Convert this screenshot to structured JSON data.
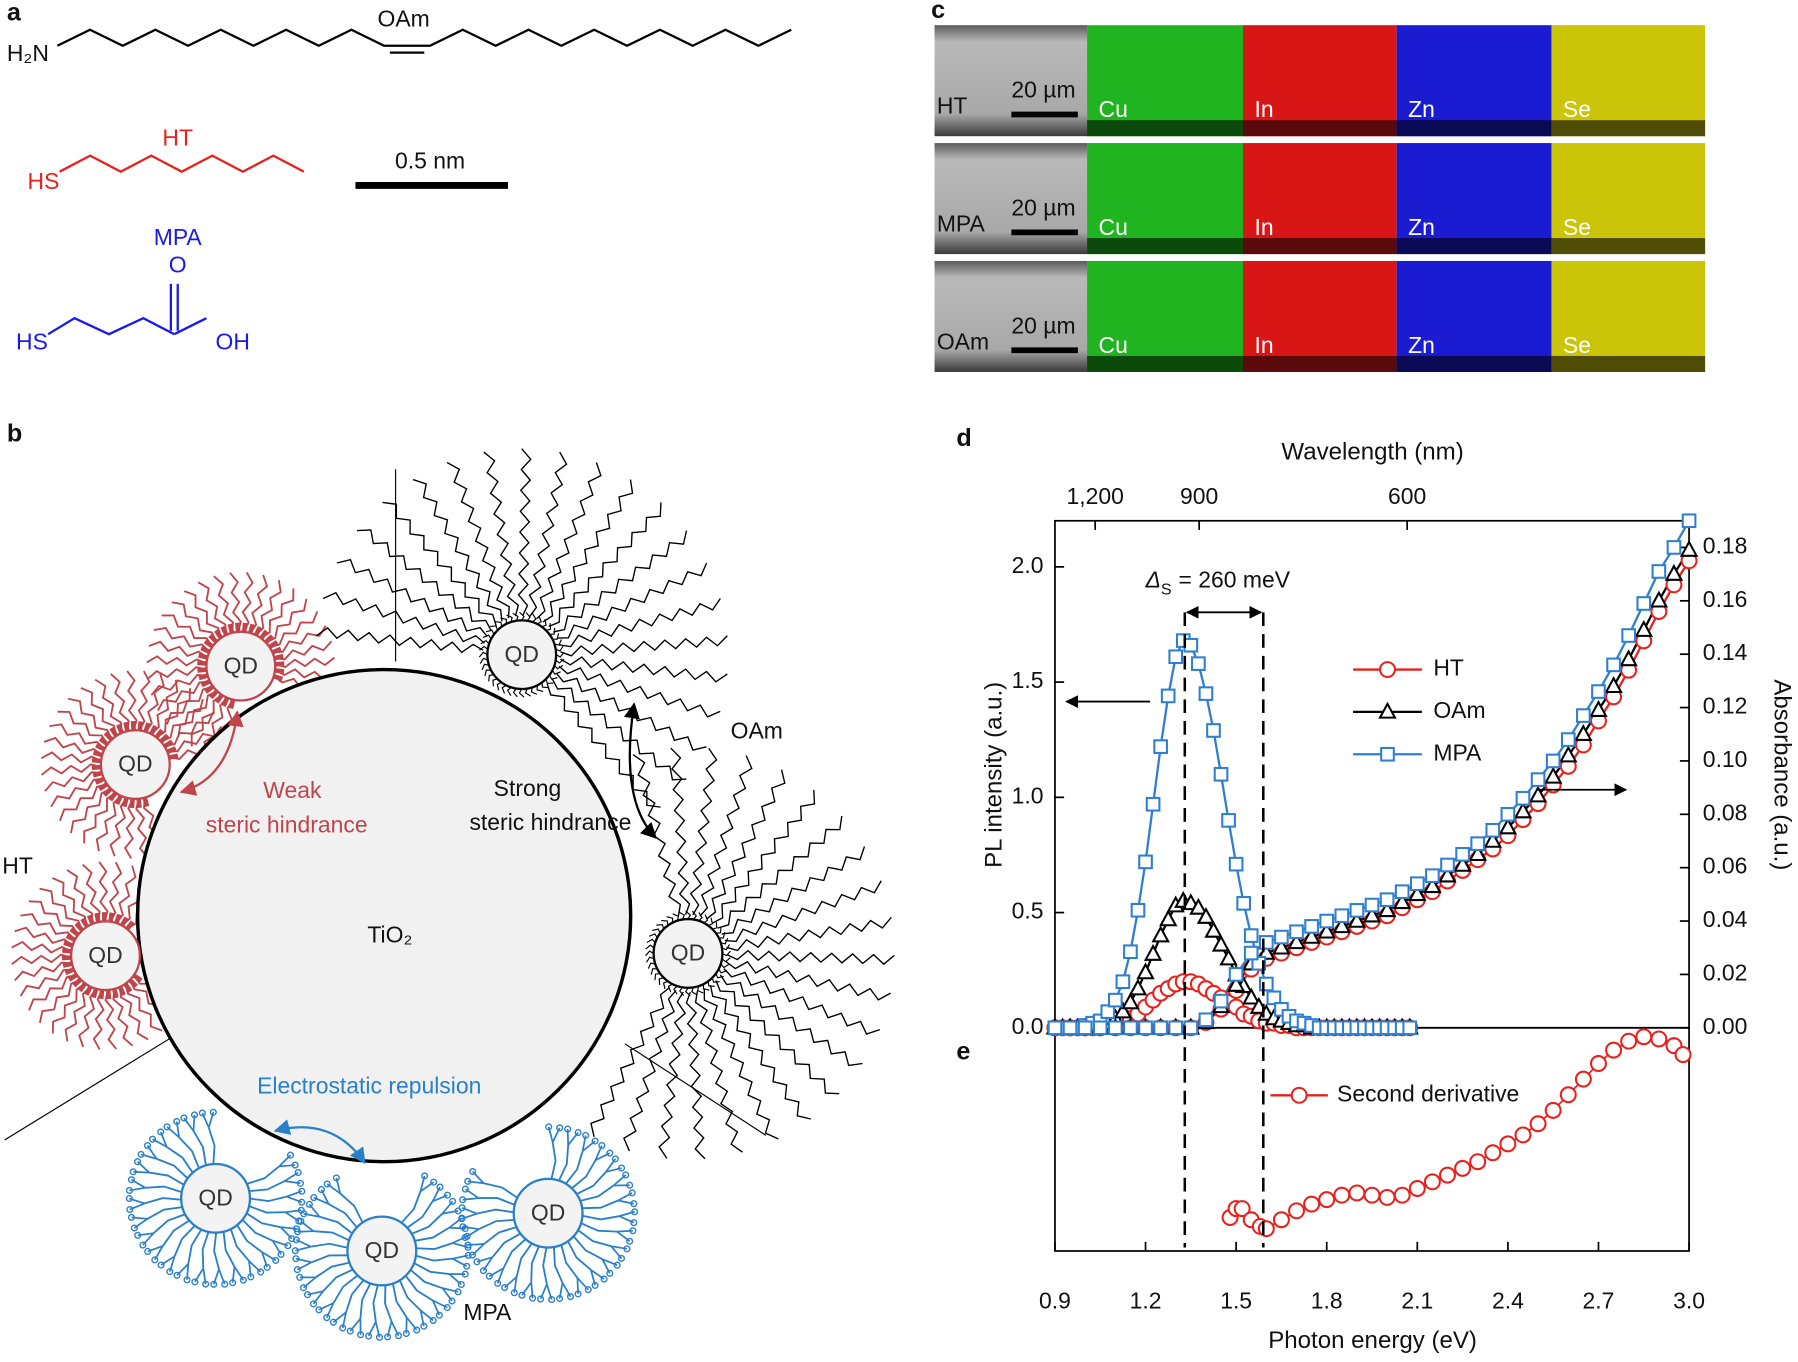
{
  "panel_labels": [
    "a",
    "b",
    "c",
    "d",
    "e"
  ],
  "panel_a": {
    "oam": {
      "label": "OAm",
      "amine": "H₂N"
    },
    "ht": {
      "label": "HT",
      "thiol": "HS"
    },
    "mpa": {
      "label": "MPA",
      "thiol": "HS",
      "carbonyl": "O",
      "hydroxyl": "OH"
    },
    "scale_bar": "0.5 nm"
  },
  "panel_b": {
    "support": "TiO₂",
    "qd_label": "QD",
    "weak": [
      "Weak",
      "steric hindrance"
    ],
    "strong": [
      "Strong",
      "steric hindrance"
    ],
    "ht_label": "HT",
    "oam_label": "OAm",
    "repulsion": "Electrostatic repulsion",
    "mpa_label": "MPA"
  },
  "panel_c": {
    "rows": [
      {
        "sample": "HT",
        "scale_bar": "20 µm",
        "elements": [
          "Cu",
          "In",
          "Zn",
          "Se"
        ]
      },
      {
        "sample": "MPA",
        "scale_bar": "20 µm",
        "elements": [
          "Cu",
          "In",
          "Zn",
          "Se"
        ]
      },
      {
        "sample": "OAm",
        "scale_bar": "20 µm",
        "elements": [
          "Cu",
          "In",
          "Zn",
          "Se"
        ]
      }
    ]
  },
  "chart_data": [
    {
      "type": "line",
      "x2label": "Wavelength (nm)",
      "ylabel": "PL intensity (a.u.)",
      "y2label": "Absorbance (a.u.)",
      "annotation": {
        "symbol": "Δ",
        "subscript": "S",
        "text": "= 260 meV"
      },
      "vlines": [
        1.33,
        1.59
      ],
      "xlim": [
        0.9,
        3.0
      ],
      "x2ticks": [
        {
          "value": 1200,
          "label": "1,200"
        },
        900,
        600
      ],
      "ylim": [
        0,
        2.2
      ],
      "yticks": [
        {
          "value": 0,
          "label": "0.0"
        },
        0.5,
        {
          "value": 1,
          "label": "1.0"
        },
        1.5,
        {
          "value": 2,
          "label": "2.0"
        }
      ],
      "y2lim": [
        0,
        0.19
      ],
      "y2ticks": [
        {
          "value": 0,
          "label": "0.00"
        },
        0.02,
        0.04,
        0.06,
        0.08,
        {
          "value": 0.1,
          "label": "0.10"
        },
        0.12,
        0.14,
        0.16,
        0.18
      ],
      "x": [
        0.9,
        0.925,
        0.95,
        0.975,
        1.0,
        1.025,
        1.05,
        1.075,
        1.1,
        1.125,
        1.15,
        1.175,
        1.2,
        1.225,
        1.25,
        1.275,
        1.3,
        1.325,
        1.35,
        1.375,
        1.4,
        1.425,
        1.45,
        1.475,
        1.5,
        1.525,
        1.55,
        1.575,
        1.6,
        1.625,
        1.65,
        1.675,
        1.7,
        1.725,
        1.75,
        1.775,
        1.8,
        1.825,
        1.85,
        1.875,
        1.9,
        1.925,
        1.95,
        1.975,
        2.0,
        2.025,
        2.05,
        2.075
      ],
      "absorbance_x": [
        0.9,
        0.95,
        1.0,
        1.05,
        1.1,
        1.15,
        1.2,
        1.25,
        1.3,
        1.35,
        1.4,
        1.45,
        1.5,
        1.55,
        1.6,
        1.65,
        1.7,
        1.75,
        1.8,
        1.85,
        1.9,
        1.95,
        2.0,
        2.05,
        2.1,
        2.15,
        2.2,
        2.25,
        2.3,
        2.35,
        2.4,
        2.45,
        2.5,
        2.55,
        2.6,
        2.65,
        2.7,
        2.75,
        2.8,
        2.85,
        2.9,
        2.95,
        3.0
      ],
      "series": [
        {
          "name": "HT",
          "color": "#e8211d",
          "marker": "circle",
          "values": [
            0,
            0,
            0,
            0,
            0,
            0,
            0,
            0.01,
            0.01,
            0.02,
            0.04,
            0.06,
            0.09,
            0.12,
            0.15,
            0.17,
            0.19,
            0.2,
            0.2,
            0.19,
            0.17,
            0.15,
            0.13,
            0.11,
            0.09,
            0.06,
            0.05,
            0.03,
            0.02,
            0.02,
            0.01,
            0.01,
            0,
            0,
            0,
            0,
            0,
            0,
            0,
            0,
            0,
            0,
            0,
            0,
            0,
            0,
            0,
            0
          ],
          "absorbance_values": [
            0,
            0,
            0,
            0,
            0,
            0,
            0,
            0,
            0,
            0,
            0.002,
            0.007,
            0.014,
            0.022,
            0.026,
            0.028,
            0.03,
            0.032,
            0.034,
            0.036,
            0.038,
            0.04,
            0.042,
            0.045,
            0.048,
            0.051,
            0.055,
            0.059,
            0.063,
            0.067,
            0.072,
            0.078,
            0.084,
            0.091,
            0.098,
            0.106,
            0.115,
            0.124,
            0.134,
            0.145,
            0.156,
            0.166,
            0.175
          ]
        },
        {
          "name": "OAm",
          "color": "#000000",
          "marker": "triangle",
          "values": [
            0,
            0,
            0,
            0,
            0,
            0.01,
            0.01,
            0.02,
            0.04,
            0.07,
            0.11,
            0.17,
            0.24,
            0.32,
            0.4,
            0.47,
            0.53,
            0.55,
            0.54,
            0.52,
            0.48,
            0.42,
            0.36,
            0.3,
            0.23,
            0.18,
            0.13,
            0.09,
            0.06,
            0.04,
            0.03,
            0.02,
            0.01,
            0.01,
            0,
            0,
            0,
            0,
            0,
            0,
            0,
            0,
            0,
            0,
            0,
            0,
            0,
            0
          ],
          "absorbance_values": [
            0,
            0,
            0,
            0,
            0,
            0,
            0,
            0,
            0,
            0,
            0.002,
            0.008,
            0.016,
            0.024,
            0.028,
            0.03,
            0.032,
            0.034,
            0.036,
            0.038,
            0.04,
            0.042,
            0.044,
            0.047,
            0.05,
            0.053,
            0.057,
            0.061,
            0.065,
            0.07,
            0.075,
            0.081,
            0.087,
            0.094,
            0.102,
            0.11,
            0.119,
            0.128,
            0.138,
            0.149,
            0.16,
            0.17,
            0.179
          ]
        },
        {
          "name": "MPA",
          "color": "#2f7fd1",
          "marker": "square",
          "values": [
            0,
            0,
            0,
            0,
            0.01,
            0.02,
            0.03,
            0.07,
            0.12,
            0.2,
            0.33,
            0.51,
            0.72,
            0.97,
            1.22,
            1.44,
            1.61,
            1.68,
            1.66,
            1.58,
            1.45,
            1.29,
            1.1,
            0.9,
            0.71,
            0.54,
            0.4,
            0.28,
            0.19,
            0.13,
            0.08,
            0.05,
            0.03,
            0.02,
            0.01,
            0,
            0,
            0,
            0,
            0,
            0,
            0,
            0,
            0,
            0,
            0,
            0,
            0
          ],
          "absorbance_values": [
            0,
            0,
            0,
            0,
            0,
            0,
            0,
            0,
            0,
            0,
            0.003,
            0.01,
            0.02,
            0.028,
            0.032,
            0.034,
            0.036,
            0.038,
            0.04,
            0.042,
            0.044,
            0.046,
            0.048,
            0.051,
            0.054,
            0.057,
            0.061,
            0.065,
            0.069,
            0.074,
            0.08,
            0.086,
            0.093,
            0.1,
            0.108,
            0.117,
            0.126,
            0.136,
            0.147,
            0.159,
            0.171,
            0.18,
            0.19
          ]
        }
      ]
    },
    {
      "type": "line",
      "xlabel": "Photon energy (eV)",
      "xlim": [
        0.9,
        3.0
      ],
      "xticks": [
        0.9,
        1.2,
        1.5,
        1.8,
        2.1,
        2.4,
        2.7,
        {
          "value": 3,
          "label": "3.0"
        }
      ],
      "ylim": [
        0,
        1
      ],
      "series": [
        {
          "name": "Second derivative",
          "color": "#e8211d",
          "marker": "circle",
          "x": [
            1.48,
            1.5,
            1.52,
            1.55,
            1.58,
            1.6,
            1.65,
            1.7,
            1.75,
            1.8,
            1.85,
            1.9,
            1.95,
            2.0,
            2.05,
            2.1,
            2.15,
            2.2,
            2.25,
            2.3,
            2.35,
            2.4,
            2.45,
            2.5,
            2.55,
            2.6,
            2.65,
            2.7,
            2.75,
            2.8,
            2.85,
            2.9,
            2.95,
            2.98
          ],
          "values": [
            0.15,
            0.19,
            0.19,
            0.14,
            0.11,
            0.1,
            0.14,
            0.18,
            0.21,
            0.23,
            0.25,
            0.26,
            0.25,
            0.24,
            0.25,
            0.28,
            0.31,
            0.34,
            0.37,
            0.4,
            0.44,
            0.48,
            0.52,
            0.57,
            0.63,
            0.7,
            0.77,
            0.84,
            0.9,
            0.94,
            0.96,
            0.95,
            0.92,
            0.88
          ]
        }
      ]
    }
  ]
}
